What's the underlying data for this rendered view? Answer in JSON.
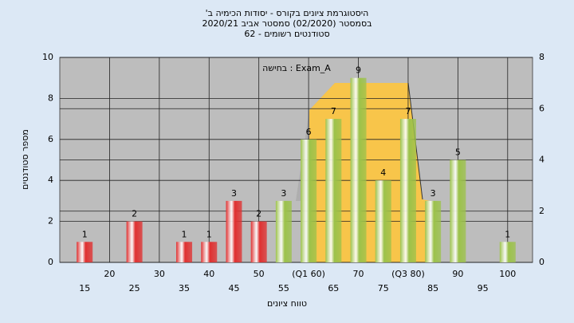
{
  "chart_data": {
    "type": "bar",
    "title": [
      "היסטוגרמת ציונים בקורס - יסודות הכימיה ב'",
      "בסמסטר (02/2020) סמסטר אביב 2020/21",
      "סטודנטים רשומים - 62"
    ],
    "annotation": "בחישה : Exam_A",
    "xlabel": "טווח ציונים",
    "ylabel": "מספר סטודנטים",
    "x": [
      15,
      20,
      25,
      30,
      35,
      40,
      45,
      50,
      55,
      60,
      65,
      70,
      75,
      80,
      85,
      90,
      95,
      100
    ],
    "values": [
      1,
      0,
      2,
      0,
      1,
      1,
      3,
      2,
      3,
      6,
      7,
      9,
      4,
      7,
      3,
      5,
      0,
      1
    ],
    "colors": [
      "#e03030",
      "#e03030",
      "#e03030",
      "#e03030",
      "#e03030",
      "#e03030",
      "#e03030",
      "#e03030",
      "#9cc24a",
      "#9cc24a",
      "#9cc24a",
      "#9cc24a",
      "#9cc24a",
      "#9cc24a",
      "#9cc24a",
      "#9cc24a",
      "#9cc24a",
      "#9cc24a"
    ],
    "xlim": [
      10,
      105
    ],
    "xticks": [
      15,
      20,
      25,
      30,
      35,
      40,
      45,
      50,
      55,
      {
        "value": 60,
        "label": "(Q1 60)"
      },
      65,
      70,
      75,
      {
        "value": 80,
        "label": "(Q3 80)"
      },
      85,
      90,
      95,
      100
    ],
    "ylim": [
      0,
      10
    ],
    "yticks": [
      0,
      2,
      4,
      6,
      8,
      10
    ],
    "y2lim": [
      0,
      8
    ],
    "y2ticks": [
      0,
      2,
      4,
      6,
      8
    ],
    "grid": true
  }
}
